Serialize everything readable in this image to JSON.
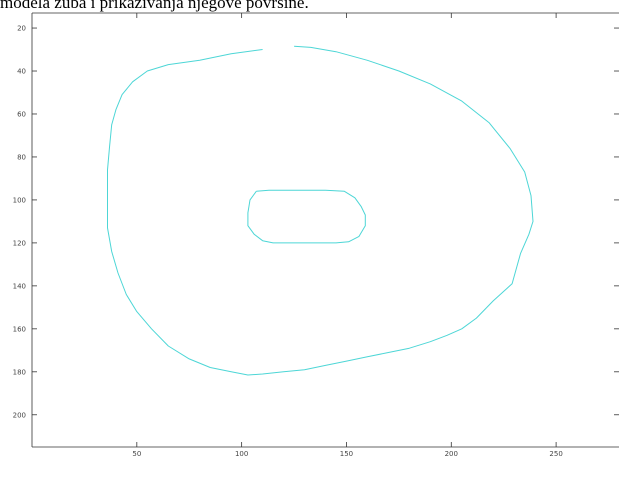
{
  "caption": "modela zuba i prikazivanja njegove površine.",
  "chart_data": {
    "type": "line",
    "title": "",
    "xlabel": "",
    "ylabel": "",
    "xlim": [
      0,
      280
    ],
    "ylim": [
      215,
      13
    ],
    "y_reversed": true,
    "grid": false,
    "x_ticks": [
      50,
      100,
      150,
      200,
      250
    ],
    "y_ticks": [
      20,
      40,
      60,
      80,
      100,
      120,
      140,
      160,
      180,
      200
    ],
    "line_color": "#4dd6d6",
    "series": [
      {
        "x": [
          125,
          133,
          145,
          160,
          175,
          190,
          205,
          218,
          228,
          235,
          238,
          239,
          237,
          233,
          229,
          220,
          212,
          205,
          198,
          190,
          180,
          170,
          160,
          150,
          140,
          130,
          120,
          110,
          103,
          95,
          85,
          75,
          65,
          57,
          50,
          45,
          41,
          38,
          36,
          36,
          36,
          36,
          37,
          38,
          40,
          43,
          48,
          55,
          65,
          80,
          95,
          110
        ],
        "y": [
          28.5,
          29,
          31,
          35,
          40,
          46,
          54,
          64,
          76,
          87,
          98,
          110,
          116,
          125,
          139,
          147,
          155,
          160,
          163,
          166,
          169,
          171,
          173,
          175,
          177,
          179,
          180,
          181,
          181.5,
          180,
          178,
          174,
          168,
          160,
          152,
          144,
          134,
          124,
          113,
          106,
          96,
          86,
          75,
          65,
          58,
          51,
          45,
          40,
          37,
          35,
          32,
          30
        ]
      },
      {
        "x": [
          107,
          113,
          125,
          140,
          149,
          154,
          157,
          159,
          159,
          156,
          151,
          145,
          135,
          125,
          115,
          110,
          106,
          103,
          103,
          104,
          107
        ],
        "y": [
          96,
          95.5,
          95.5,
          95.5,
          96,
          99,
          103,
          107,
          112,
          117,
          119.5,
          120,
          120,
          120,
          120,
          119,
          116,
          112,
          106,
          100,
          96
        ]
      }
    ]
  }
}
